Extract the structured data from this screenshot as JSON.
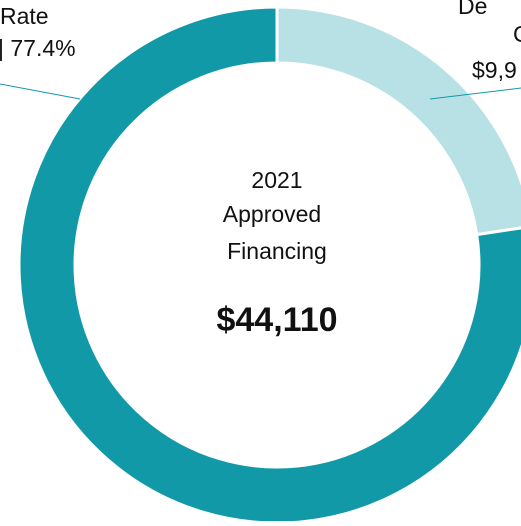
{
  "chart_data": {
    "type": "donut",
    "values": [
      22.6,
      77.4
    ],
    "colors": [
      "#b7e1e5",
      "#1299a8"
    ],
    "slice_labels": [
      [
        "De",
        "C",
        "$9,9"
      ],
      [
        "Rate",
        "| 77.4%"
      ]
    ],
    "center_text": [
      "2021",
      "Approved",
      "Financing"
    ],
    "center_value": "$44,110"
  }
}
